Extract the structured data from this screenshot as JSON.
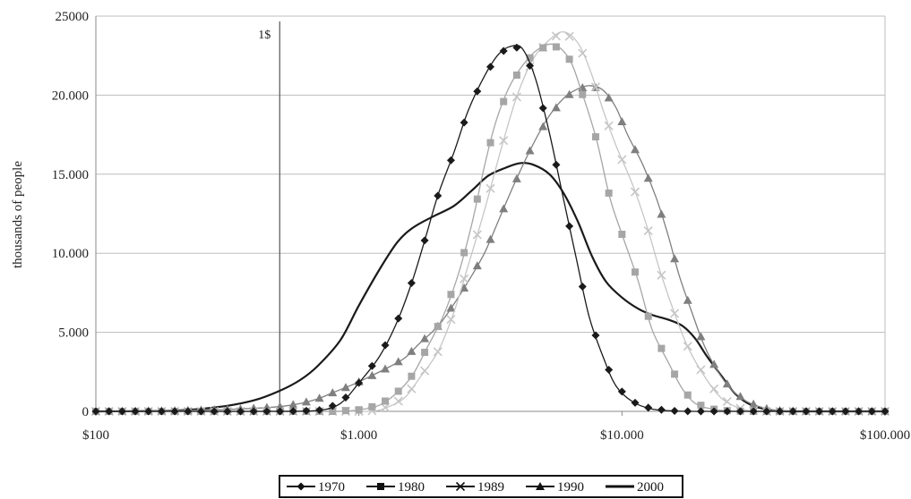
{
  "chart_data": {
    "type": "line",
    "title": "",
    "xlabel": "",
    "ylabel": "thousands of people",
    "xscale": "log",
    "xlim": [
      100,
      100000
    ],
    "ylim": [
      0,
      25000
    ],
    "x_ticks": [
      {
        "value": 100,
        "label": "$100"
      },
      {
        "value": 1000,
        "label": "$1.000"
      },
      {
        "value": 10000,
        "label": "$10.000"
      },
      {
        "value": 100000,
        "label": "$100.000"
      }
    ],
    "y_ticks": [
      {
        "value": 0,
        "label": "0"
      },
      {
        "value": 5000,
        "label": "5.000"
      },
      {
        "value": 10000,
        "label": "10.000"
      },
      {
        "value": 15000,
        "label": "15.000"
      },
      {
        "value": 20000,
        "label": "20.000"
      },
      {
        "value": 25000,
        "label": "25000"
      }
    ],
    "grid": {
      "horizontal": true,
      "vertical": false
    },
    "reference_line": {
      "x": 500,
      "label": "1$"
    },
    "legend": {
      "position": "bottom"
    },
    "series": [
      {
        "name": "1970",
        "marker": "diamond",
        "color": "#1a1a1a",
        "points": [
          [
            100,
            0
          ],
          [
            150,
            0
          ],
          [
            200,
            0
          ],
          [
            300,
            0
          ],
          [
            500,
            0
          ],
          [
            700,
            50
          ],
          [
            850,
            500
          ],
          [
            1000,
            1800
          ],
          [
            1200,
            3500
          ],
          [
            1400,
            5700
          ],
          [
            1600,
            8300
          ],
          [
            1800,
            11100
          ],
          [
            2000,
            13700
          ],
          [
            2300,
            16400
          ],
          [
            2600,
            19000
          ],
          [
            3000,
            21200
          ],
          [
            3400,
            22600
          ],
          [
            3800,
            23100
          ],
          [
            4200,
            22900
          ],
          [
            4700,
            21000
          ],
          [
            5300,
            17600
          ],
          [
            6000,
            13400
          ],
          [
            6700,
            9700
          ],
          [
            7500,
            6000
          ],
          [
            8500,
            3400
          ],
          [
            9500,
            1600
          ],
          [
            11000,
            600
          ],
          [
            13000,
            150
          ],
          [
            16000,
            20
          ],
          [
            20000,
            0
          ],
          [
            30000,
            0
          ],
          [
            50000,
            0
          ],
          [
            100000,
            0
          ]
        ]
      },
      {
        "name": "1980",
        "marker": "square",
        "color": "#a6a6a6",
        "points": [
          [
            100,
            0
          ],
          [
            200,
            0
          ],
          [
            400,
            0
          ],
          [
            800,
            0
          ],
          [
            1000,
            100
          ],
          [
            1200,
            400
          ],
          [
            1400,
            1200
          ],
          [
            1600,
            2300
          ],
          [
            1800,
            3900
          ],
          [
            2100,
            6100
          ],
          [
            2400,
            8800
          ],
          [
            2700,
            12000
          ],
          [
            3000,
            15500
          ],
          [
            3300,
            18200
          ],
          [
            3700,
            20400
          ],
          [
            4200,
            21900
          ],
          [
            4800,
            22900
          ],
          [
            5500,
            23200
          ],
          [
            6300,
            22300
          ],
          [
            7000,
            20300
          ],
          [
            8000,
            17200
          ],
          [
            9000,
            13500
          ],
          [
            10000,
            11200
          ],
          [
            11500,
            8300
          ],
          [
            13000,
            5200
          ],
          [
            15000,
            3100
          ],
          [
            17000,
            1400
          ],
          [
            19000,
            500
          ],
          [
            22000,
            150
          ],
          [
            26000,
            20
          ],
          [
            32000,
            0
          ],
          [
            50000,
            0
          ],
          [
            100000,
            0
          ]
        ]
      },
      {
        "name": "1989",
        "marker": "cross",
        "color": "#c6c6c6",
        "points": [
          [
            100,
            0
          ],
          [
            300,
            0
          ],
          [
            700,
            0
          ],
          [
            1100,
            0
          ],
          [
            1300,
            300
          ],
          [
            1500,
            900
          ],
          [
            1700,
            2100
          ],
          [
            2000,
            3800
          ],
          [
            2300,
            6300
          ],
          [
            2600,
            9200
          ],
          [
            3000,
            12700
          ],
          [
            3500,
            16800
          ],
          [
            4000,
            20000
          ],
          [
            4600,
            22300
          ],
          [
            5300,
            23500
          ],
          [
            6000,
            24000
          ],
          [
            6800,
            23300
          ],
          [
            7600,
            21500
          ],
          [
            8500,
            19000
          ],
          [
            9500,
            16800
          ],
          [
            11000,
            14300
          ],
          [
            12500,
            11600
          ],
          [
            14000,
            8800
          ],
          [
            16000,
            6000
          ],
          [
            18000,
            3900
          ],
          [
            21000,
            2000
          ],
          [
            24000,
            800
          ],
          [
            28000,
            200
          ],
          [
            33000,
            0
          ],
          [
            50000,
            0
          ],
          [
            100000,
            0
          ]
        ]
      },
      {
        "name": "1990",
        "marker": "triangle",
        "color": "#7f7f7f",
        "points": [
          [
            100,
            0
          ],
          [
            200,
            50
          ],
          [
            350,
            150
          ],
          [
            500,
            300
          ],
          [
            600,
            500
          ],
          [
            700,
            800
          ],
          [
            800,
            1200
          ],
          [
            950,
            1700
          ],
          [
            1100,
            2200
          ],
          [
            1300,
            2800
          ],
          [
            1500,
            3400
          ],
          [
            1700,
            4300
          ],
          [
            2000,
            5400
          ],
          [
            2300,
            6800
          ],
          [
            2600,
            8200
          ],
          [
            3000,
            10000
          ],
          [
            3400,
            12100
          ],
          [
            3900,
            14400
          ],
          [
            4500,
            16600
          ],
          [
            5200,
            18500
          ],
          [
            6000,
            19800
          ],
          [
            6800,
            20400
          ],
          [
            7600,
            20600
          ],
          [
            8500,
            20300
          ],
          [
            9500,
            19200
          ],
          [
            10500,
            17500
          ],
          [
            12000,
            15600
          ],
          [
            13500,
            13500
          ],
          [
            15000,
            11100
          ],
          [
            16500,
            8600
          ],
          [
            18500,
            6200
          ],
          [
            20500,
            4200
          ],
          [
            23000,
            2600
          ],
          [
            26000,
            1400
          ],
          [
            30000,
            600
          ],
          [
            35000,
            200
          ],
          [
            40000,
            50
          ],
          [
            50000,
            0
          ],
          [
            100000,
            0
          ]
        ]
      },
      {
        "name": "2000",
        "marker": "none",
        "color": "#1a1a1a",
        "points": [
          [
            100,
            0
          ],
          [
            200,
            50
          ],
          [
            300,
            300
          ],
          [
            400,
            700
          ],
          [
            500,
            1300
          ],
          [
            600,
            2000
          ],
          [
            700,
            2900
          ],
          [
            850,
            4500
          ],
          [
            1000,
            6700
          ],
          [
            1200,
            9000
          ],
          [
            1400,
            10700
          ],
          [
            1600,
            11600
          ],
          [
            1900,
            12300
          ],
          [
            2300,
            13000
          ],
          [
            2700,
            14000
          ],
          [
            3100,
            14900
          ],
          [
            3600,
            15400
          ],
          [
            4100,
            15700
          ],
          [
            4600,
            15600
          ],
          [
            5300,
            15000
          ],
          [
            6000,
            13800
          ],
          [
            6800,
            12000
          ],
          [
            7700,
            9800
          ],
          [
            8700,
            8200
          ],
          [
            10000,
            7200
          ],
          [
            11500,
            6500
          ],
          [
            13000,
            6100
          ],
          [
            15000,
            5800
          ],
          [
            17000,
            5400
          ],
          [
            19000,
            4600
          ],
          [
            21000,
            3500
          ],
          [
            24000,
            2200
          ],
          [
            27000,
            1100
          ],
          [
            31000,
            400
          ],
          [
            36000,
            100
          ],
          [
            42000,
            0
          ],
          [
            60000,
            0
          ],
          [
            100000,
            0
          ]
        ]
      }
    ]
  }
}
